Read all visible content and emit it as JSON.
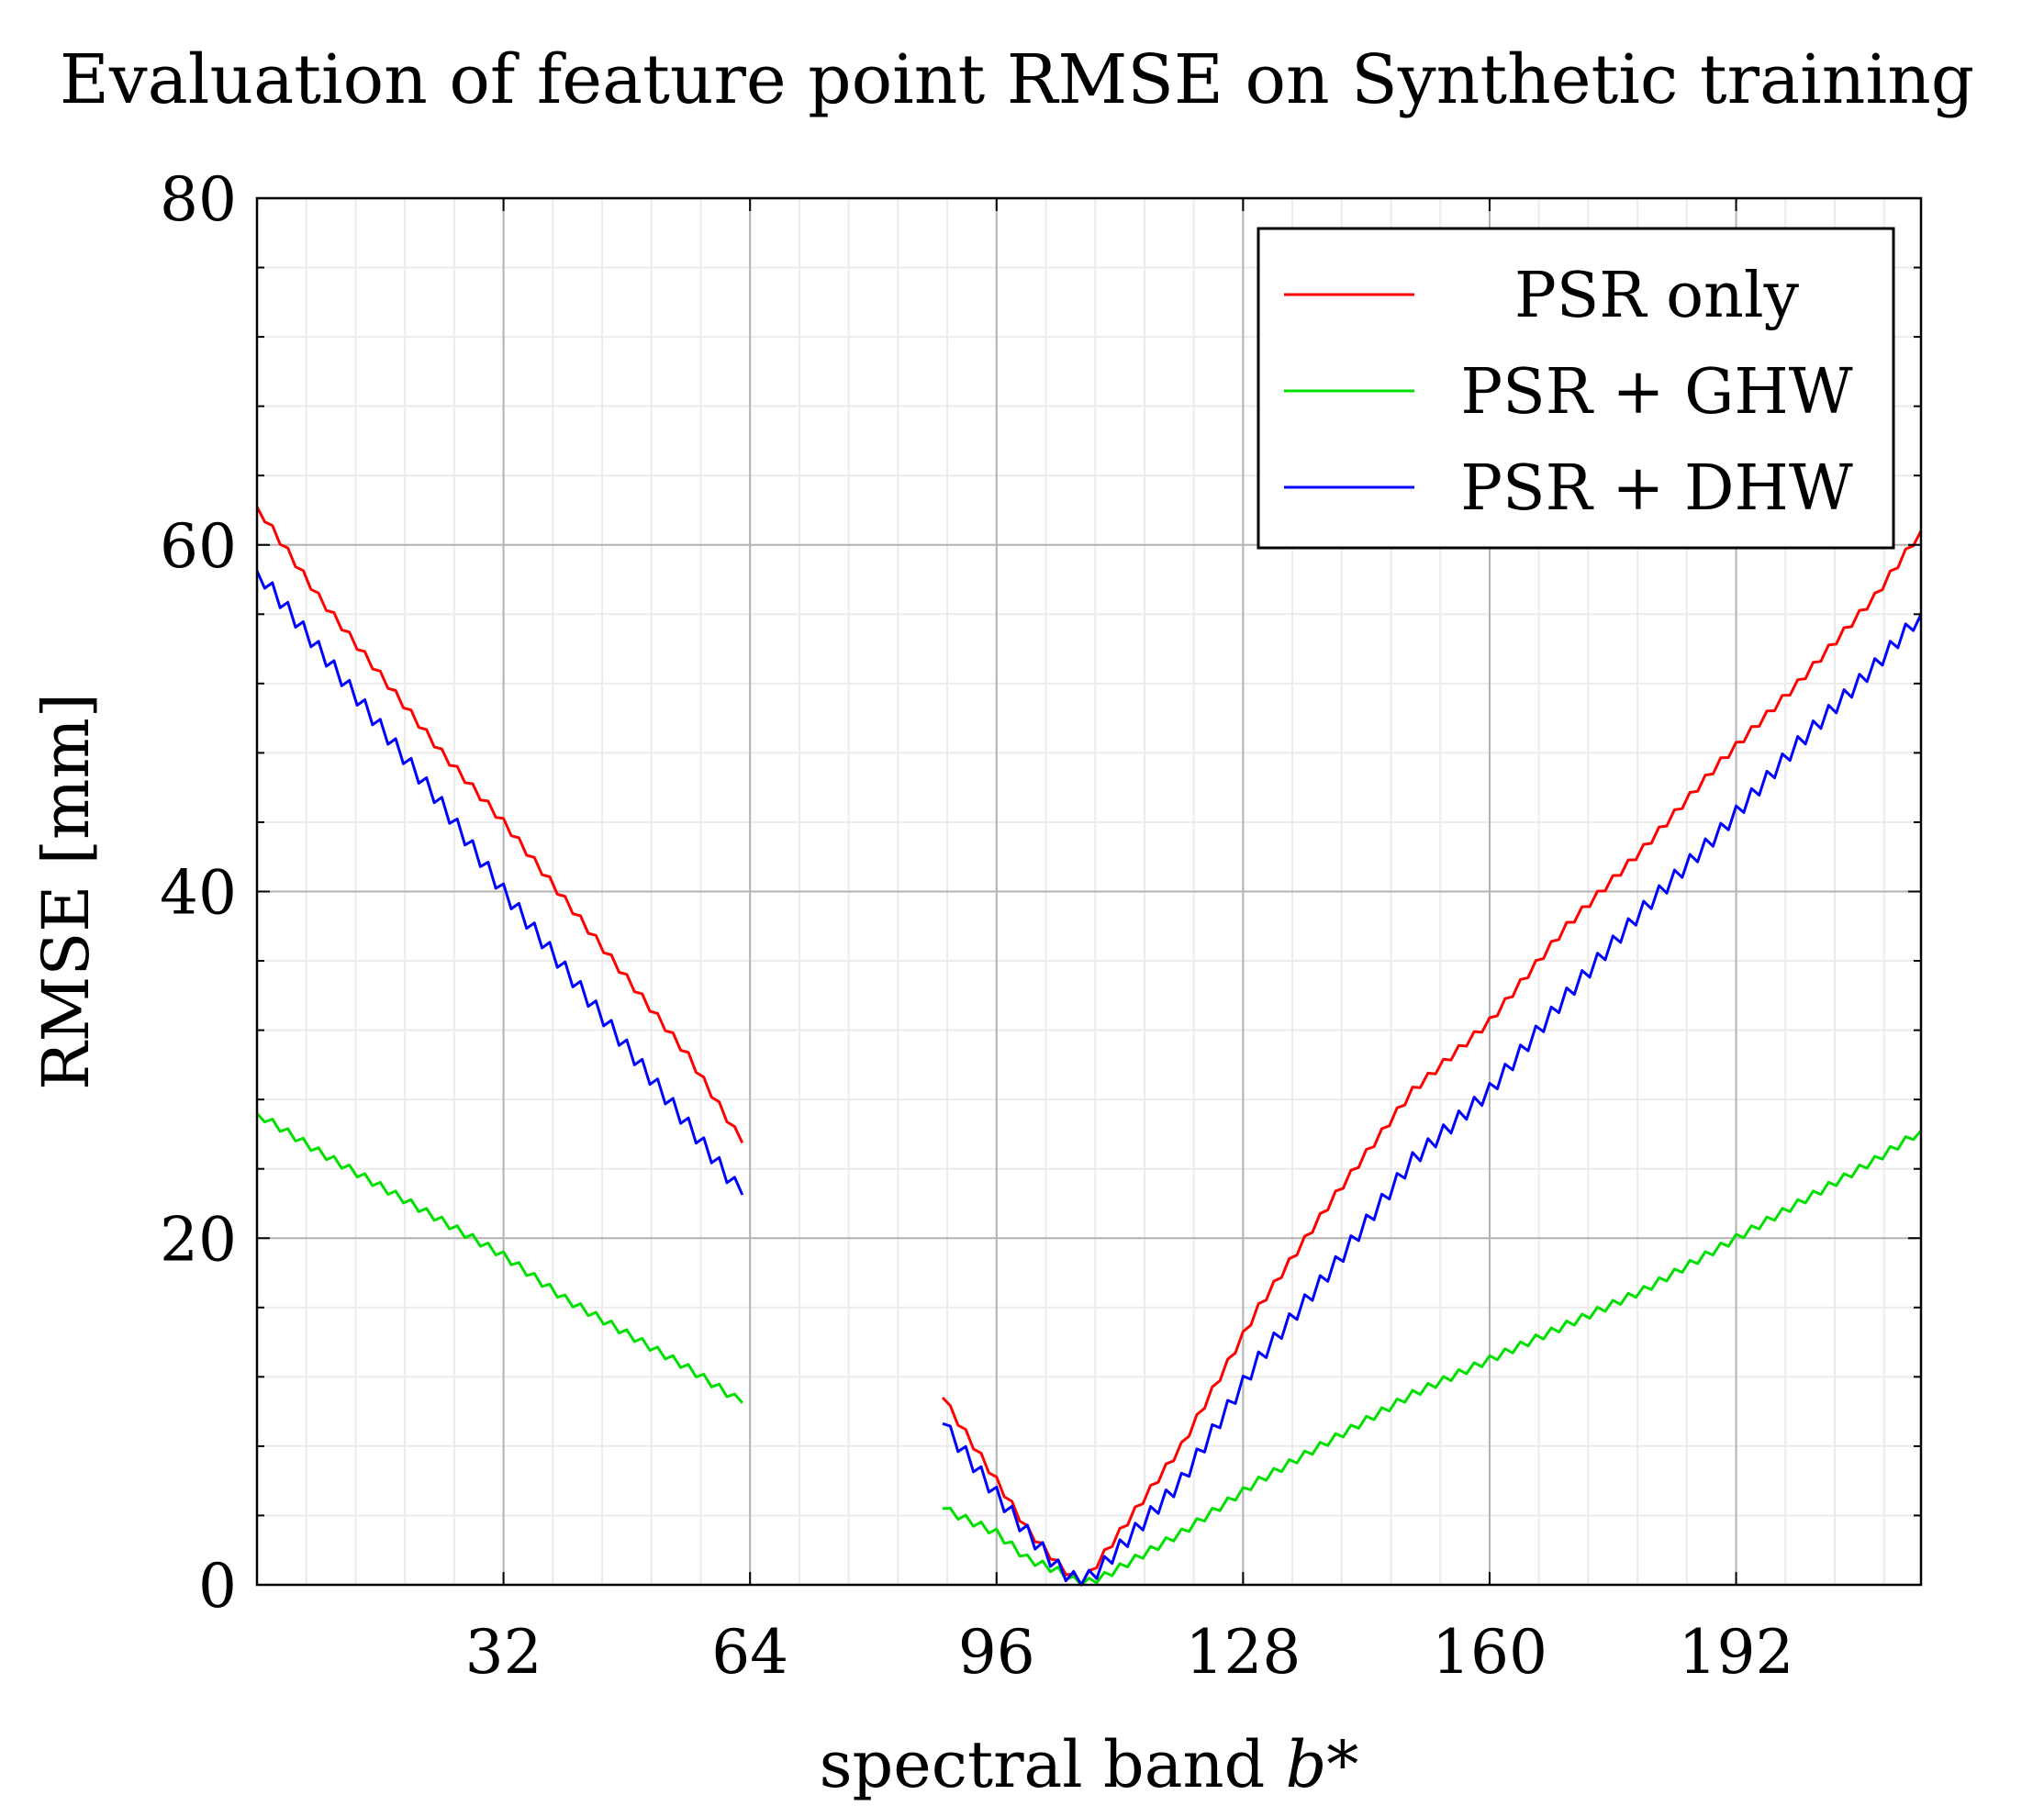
{
  "chart_data": {
    "type": "line",
    "title": "Evaluation of feature point RMSE on Synthetic training",
    "xlabel": "spectral band",
    "xlabel_var": "b*",
    "ylabel": "RMSE [mm]",
    "xlim": [
      0,
      216
    ],
    "ylim": [
      0,
      80
    ],
    "xticks": [
      32,
      64,
      96,
      128,
      160,
      192
    ],
    "yticks": [
      0,
      20,
      40,
      60,
      80
    ],
    "grid": true,
    "legend_position": "top-right",
    "colors": {
      "PSR only": "#ff0000",
      "PSR + GHW": "#00e000",
      "PSR + DHW": "#0000ff"
    },
    "segments": [
      {
        "x_start": 0,
        "x_end": 63
      },
      {
        "x_start": 89,
        "x_end": 216
      }
    ],
    "series": [
      {
        "name": "PSR only",
        "color": "#ff0000",
        "points": [
          [
            0,
            62.2
          ],
          [
            8,
            57.0
          ],
          [
            16,
            52.5
          ],
          [
            24,
            48.0
          ],
          [
            32,
            44.0
          ],
          [
            40,
            39.5
          ],
          [
            48,
            35.0
          ],
          [
            56,
            30.5
          ],
          [
            63,
            25.5
          ],
          [
            89,
            10.8
          ],
          [
            96,
            6.0
          ],
          [
            100,
            3.2
          ],
          [
            104,
            1.2
          ],
          [
            107,
            0.0
          ],
          [
            110,
            1.8
          ],
          [
            120,
            8.0
          ],
          [
            130,
            16.0
          ],
          [
            140,
            22.5
          ],
          [
            150,
            28.5
          ],
          [
            160,
            32.5
          ],
          [
            170,
            38.0
          ],
          [
            180,
            42.5
          ],
          [
            190,
            47.5
          ],
          [
            200,
            52.0
          ],
          [
            210,
            57.0
          ],
          [
            216,
            60.8
          ]
        ]
      },
      {
        "name": "PSR + GHW",
        "color": "#00e000",
        "points": [
          [
            0,
            27.2
          ],
          [
            8,
            25.0
          ],
          [
            16,
            23.0
          ],
          [
            24,
            21.0
          ],
          [
            32,
            19.0
          ],
          [
            40,
            16.5
          ],
          [
            48,
            14.5
          ],
          [
            56,
            12.5
          ],
          [
            63,
            10.5
          ],
          [
            89,
            4.4
          ],
          [
            96,
            3.0
          ],
          [
            100,
            1.5
          ],
          [
            104,
            0.8
          ],
          [
            107,
            0.0
          ],
          [
            110,
            0.5
          ],
          [
            120,
            3.0
          ],
          [
            130,
            6.0
          ],
          [
            140,
            8.5
          ],
          [
            150,
            11.0
          ],
          [
            160,
            13.0
          ],
          [
            170,
            15.0
          ],
          [
            180,
            17.0
          ],
          [
            190,
            19.5
          ],
          [
            200,
            22.0
          ],
          [
            210,
            24.5
          ],
          [
            216,
            26.2
          ]
        ]
      },
      {
        "name": "PSR + DHW",
        "color": "#0000ff",
        "points": [
          [
            0,
            58.5
          ],
          [
            8,
            54.0
          ],
          [
            16,
            49.5
          ],
          [
            24,
            45.0
          ],
          [
            32,
            40.0
          ],
          [
            40,
            35.5
          ],
          [
            48,
            31.0
          ],
          [
            56,
            26.5
          ],
          [
            63,
            22.5
          ],
          [
            89,
            9.3
          ],
          [
            96,
            5.2
          ],
          [
            100,
            3.0
          ],
          [
            104,
            1.0
          ],
          [
            107,
            0.0
          ],
          [
            110,
            1.2
          ],
          [
            120,
            6.0
          ],
          [
            130,
            13.0
          ],
          [
            140,
            18.5
          ],
          [
            150,
            24.5
          ],
          [
            160,
            28.5
          ],
          [
            170,
            34.0
          ],
          [
            180,
            39.0
          ],
          [
            190,
            43.5
          ],
          [
            200,
            48.5
          ],
          [
            210,
            53.0
          ],
          [
            216,
            56.0
          ]
        ]
      }
    ]
  }
}
